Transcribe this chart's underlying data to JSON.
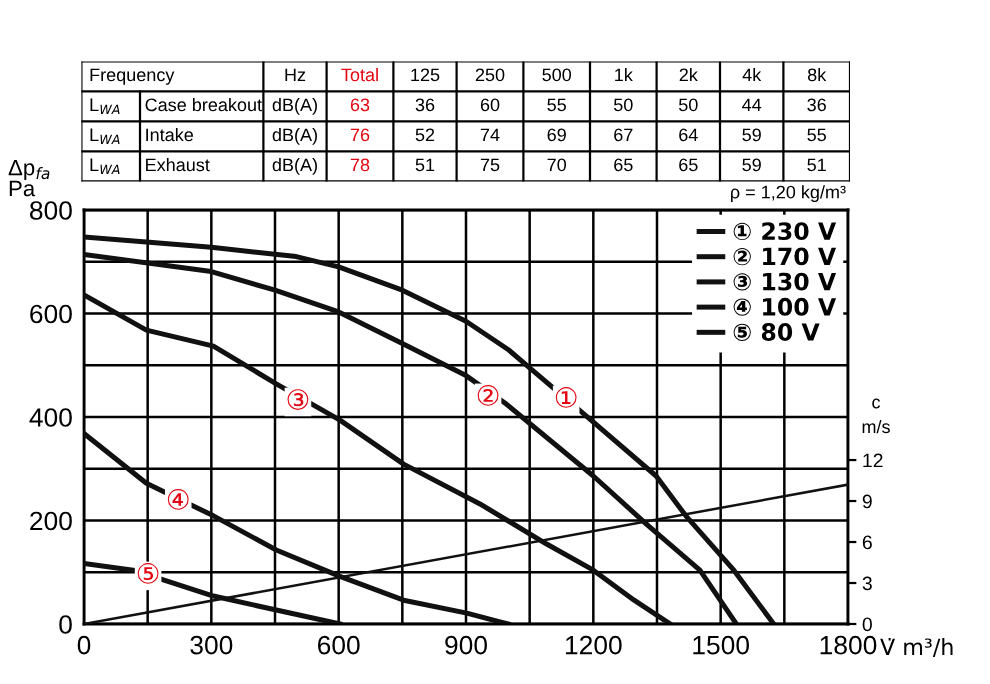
{
  "chart_data": [
    {
      "type": "other",
      "xlabel": "Frequency",
      "categories": [
        "Hz",
        "Total",
        "125",
        "250",
        "500",
        "1k",
        "2k",
        "4k",
        "8k"
      ],
      "colors": [
        "#000000",
        "#e30613",
        "#000000",
        "#000000",
        "#000000",
        "#000000",
        "#000000",
        "#000000",
        "#000000"
      ],
      "y2_categories": [
        "L$_{WA}$",
        "L$_{WA}$",
        "L$_{WA}$"
      ],
      "y_categories": [
        "Case breakout",
        "Intake",
        "Exhaust"
      ],
      "cell_labels": [
        [
          "dB(A)",
          "63",
          "36",
          "60",
          "55",
          "50",
          "50",
          "44",
          "36"
        ],
        [
          "dB(A)",
          "76",
          "52",
          "74",
          "69",
          "67",
          "64",
          "59",
          "55"
        ],
        [
          "dB(A)",
          "78",
          "51",
          "75",
          "70",
          "65",
          "65",
          "59",
          "51"
        ]
      ]
    },
    {
      "type": "line",
      "ylabel": "Δp$_{fa}$\nPa",
      "xlabel": "V̇ m³/h",
      "y2label": "c\nm/s",
      "xlim": [
        0,
        1800
      ],
      "ylim": [
        0,
        800
      ],
      "y2lim": [
        0,
        30.3
      ],
      "xticks": [
        0,
        {
          "value": 150,
          "label": null
        },
        300,
        {
          "value": 450,
          "label": null
        },
        600,
        {
          "value": 750,
          "label": null
        },
        900,
        {
          "value": 1050,
          "label": null
        },
        1200,
        {
          "value": 1350,
          "label": null
        },
        1500,
        {
          "value": 1650,
          "label": null
        },
        1800
      ],
      "yticks": [
        0,
        {
          "value": 100,
          "label": null
        },
        200,
        {
          "value": 300,
          "label": null
        },
        400,
        {
          "value": 500,
          "label": null
        },
        600,
        {
          "value": 700,
          "label": null
        },
        800
      ],
      "y2ticks": [
        0,
        3,
        6,
        9,
        12
      ],
      "grid": true,
      "legend": "top right",
      "marker": "none",
      "line_style": "solid",
      "series": [
        {
          "name": "① 230 V",
          "color": "#111111",
          "x": [
            0,
            300,
            500,
            600,
            750,
            900,
            1000,
            1050,
            1183,
            1348,
            1418,
            1531,
            1625
          ],
          "values": [
            748,
            728,
            710,
            690,
            645,
            585,
            530,
            495,
            402,
            286,
            209,
            104,
            0
          ]
        },
        {
          "name": "② 170 V",
          "color": "#111111",
          "x": [
            0,
            300,
            450,
            600,
            750,
            900,
            995,
            1200,
            1325,
            1451,
            1537
          ],
          "values": [
            714,
            681,
            645,
            603,
            542,
            480,
            425,
            286,
            193,
            104,
            0
          ]
        },
        {
          "name": "③ 130 V",
          "color": "#111111",
          "x": [
            0,
            147,
            305,
            453,
            603,
            753,
            933,
            1089,
            1200,
            1296,
            1381
          ],
          "values": [
            636,
            568,
            537,
            464,
            394,
            309,
            232,
            155,
            104,
            46,
            0
          ]
        },
        {
          "name": "④ 100 V",
          "color": "#111111",
          "x": [
            0,
            147,
            305,
            453,
            603,
            753,
            902,
            980,
            1000
          ],
          "values": [
            368,
            272,
            209,
            143,
            92,
            46,
            21,
            4,
            0
          ]
        },
        {
          "name": "⑤ 80 V",
          "color": "#111111",
          "x": [
            0,
            116,
            305,
            453,
            603
          ],
          "values": [
            117,
            104,
            54,
            27,
            0
          ]
        },
        {
          "color": "#111111",
          "axis": "y2",
          "x": [
            0,
            1800
          ],
          "values": [
            0,
            10.2
          ]
        }
      ],
      "annotations": [
        "ρ = 1,20 kg/m³",
        {
          "text": "①",
          "x": 1136,
          "y": 433
        },
        {
          "text": "②",
          "x": 952,
          "y": 437
        },
        {
          "text": "③",
          "x": 504,
          "y": 429
        },
        {
          "text": "④",
          "x": 222,
          "y": 236
        },
        {
          "text": "⑤",
          "x": 151,
          "y": 93
        }
      ]
    }
  ]
}
